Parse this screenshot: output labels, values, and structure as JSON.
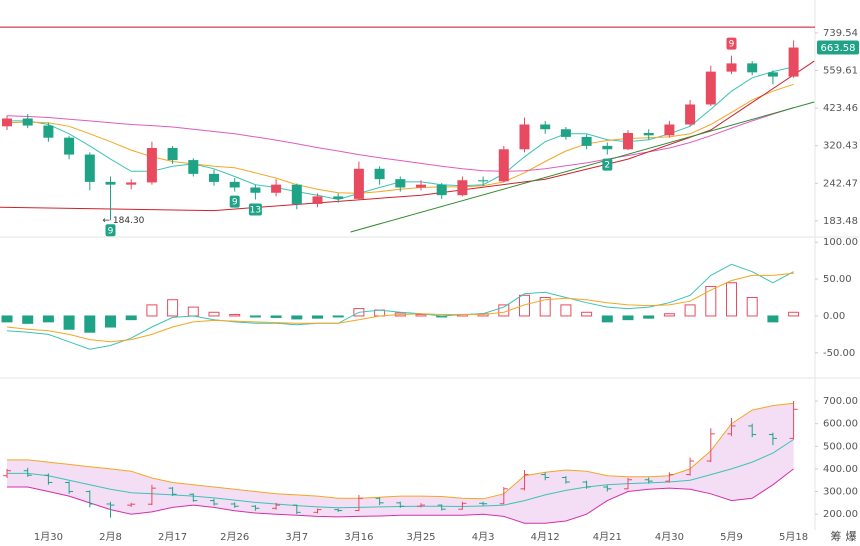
{
  "chart_data": [
    {
      "type": "candlestick",
      "log_scale": true,
      "ylim": [
        164,
        944
      ],
      "yticks": [
        183.48,
        242.47,
        320.43,
        423.46,
        559.61,
        739.54
      ],
      "up_color": "#e84a5f",
      "down_color": "#1fa386",
      "candles": [
        [
          370,
          400,
          360,
          392
        ],
        [
          392,
          405,
          365,
          372
        ],
        [
          372,
          380,
          330,
          340
        ],
        [
          340,
          345,
          290,
          300
        ],
        [
          300,
          305,
          230,
          245
        ],
        [
          245,
          255,
          184.3,
          240
        ],
        [
          240,
          250,
          232,
          244
        ],
        [
          244,
          330,
          240,
          315
        ],
        [
          315,
          320,
          280,
          288
        ],
        [
          288,
          292,
          255,
          260
        ],
        [
          260,
          268,
          238,
          245
        ],
        [
          245,
          252,
          228,
          235
        ],
        [
          235,
          240,
          215,
          226
        ],
        [
          226,
          250,
          220,
          240
        ],
        [
          240,
          242,
          200,
          208
        ],
        [
          208,
          225,
          203,
          220
        ],
        [
          220,
          225,
          210,
          216
        ],
        [
          216,
          285,
          214,
          270
        ],
        [
          270,
          275,
          240,
          250
        ],
        [
          250,
          255,
          228,
          235
        ],
        [
          235,
          248,
          230,
          240
        ],
        [
          240,
          243,
          216,
          222
        ],
        [
          222,
          255,
          220,
          248
        ],
        [
          248,
          255,
          238,
          246
        ],
        [
          246,
          320,
          244,
          312
        ],
        [
          312,
          395,
          305,
          375
        ],
        [
          375,
          385,
          350,
          362
        ],
        [
          362,
          368,
          335,
          342
        ],
        [
          342,
          348,
          312,
          320
        ],
        [
          320,
          328,
          300,
          312
        ],
        [
          312,
          360,
          310,
          352
        ],
        [
          352,
          362,
          335,
          346
        ],
        [
          346,
          385,
          340,
          375
        ],
        [
          375,
          450,
          370,
          435
        ],
        [
          435,
          580,
          430,
          555
        ],
        [
          555,
          625,
          545,
          590
        ],
        [
          590,
          600,
          540,
          552
        ],
        [
          552,
          560,
          505,
          535
        ],
        [
          535,
          700,
          530,
          663.58
        ]
      ],
      "series": [
        {
          "color": "#3cc3b5",
          "values": [
            385,
            385,
            375,
            350,
            320,
            290,
            265,
            265,
            275,
            280,
            270,
            255,
            240,
            235,
            228,
            222,
            215,
            225,
            235,
            245,
            245,
            240,
            238,
            240,
            260,
            295,
            330,
            350,
            350,
            335,
            330,
            335,
            350,
            370,
            420,
            480,
            530,
            555,
            575
          ]
        },
        {
          "color": "#f5a623",
          "values": [
            380,
            382,
            380,
            370,
            350,
            330,
            310,
            295,
            285,
            280,
            275,
            272,
            262,
            252,
            240,
            232,
            226,
            225,
            228,
            232,
            235,
            236,
            236,
            238,
            245,
            262,
            285,
            308,
            325,
            333,
            338,
            340,
            342,
            350,
            375,
            410,
            450,
            480,
            505
          ]
        },
        {
          "color": "#e05cc0",
          "values": [
            400,
            398,
            395,
            390,
            385,
            380,
            375,
            372,
            368,
            362,
            356,
            350,
            342,
            334,
            325,
            316,
            308,
            300,
            293,
            287,
            281,
            275,
            270,
            266,
            265,
            266,
            270,
            276,
            282,
            290,
            298,
            306,
            315,
            328,
            345,
            365,
            385,
            405,
            425
          ]
        }
      ],
      "trendlines": [
        {
          "color": "#d0202f",
          "x": [
            -0.5,
            10,
            20,
            26,
            30,
            34,
            39
          ],
          "values": [
            203,
            198,
            222,
            250,
            290,
            360,
            600
          ]
        },
        {
          "color": "#2e8b2e",
          "x": [
            16.6,
            39
          ],
          "values": [
            169,
            443
          ]
        }
      ],
      "hline": {
        "value": 772,
        "color": "#c8102e"
      },
      "last_price": 663.58,
      "last_price_color": "#1fa386",
      "low_label": {
        "index": 5,
        "text": "← 184.30"
      },
      "markers": [
        {
          "index": 5,
          "text": "9",
          "color": "#1fa386",
          "position": "below"
        },
        {
          "index": 11,
          "text": "9",
          "color": "#1fa386",
          "position": "below"
        },
        {
          "index": 12,
          "text": "13",
          "color": "#1fa386",
          "position": "below"
        },
        {
          "index": 29,
          "text": "2",
          "color": "#1fa386",
          "position": "below"
        },
        {
          "index": 35,
          "text": "9",
          "color": "#e84a5f",
          "position": "above"
        }
      ]
    },
    {
      "type": "macd",
      "ylim": [
        -80,
        107
      ],
      "yticks": [
        {
          "value": 100,
          "label": "100.00"
        },
        {
          "value": 50,
          "label": "50.00"
        },
        {
          "value": 0,
          "label": "0.00"
        },
        {
          "value": -50,
          "label": "-50.00"
        }
      ],
      "pos_color": "#e84a5f",
      "neg_color": "#1fa386",
      "values": [
        -8,
        -10,
        -8,
        -18,
        -22,
        -15,
        -5,
        15,
        22,
        12,
        5,
        2,
        -1,
        -2,
        -4,
        -3,
        -1,
        10,
        8,
        4,
        2,
        -1,
        2,
        3,
        15,
        28,
        25,
        15,
        5,
        -8,
        -5,
        -3,
        3,
        15,
        40,
        45,
        25,
        -8,
        5
      ],
      "series": [
        {
          "color": "#3cc3b5",
          "values": [
            -20,
            -22,
            -25,
            -35,
            -45,
            -40,
            -30,
            -15,
            -2,
            0,
            -5,
            -8,
            -10,
            -10,
            -12,
            -10,
            -10,
            5,
            8,
            5,
            3,
            0,
            2,
            3,
            12,
            30,
            32,
            25,
            18,
            12,
            10,
            12,
            18,
            28,
            55,
            70,
            60,
            45,
            60
          ]
        },
        {
          "color": "#f5a623",
          "values": [
            -15,
            -18,
            -20,
            -25,
            -32,
            -35,
            -32,
            -25,
            -15,
            -8,
            -6,
            -7,
            -8,
            -9,
            -10,
            -10,
            -10,
            -5,
            0,
            2,
            3,
            2,
            2,
            2,
            5,
            15,
            22,
            24,
            22,
            18,
            15,
            14,
            15,
            20,
            35,
            48,
            55,
            55,
            58
          ]
        }
      ]
    },
    {
      "type": "bollinger",
      "ylim": [
        130,
        793
      ],
      "yticks": [
        {
          "value": 700,
          "label": "700.00"
        },
        {
          "value": 600,
          "label": "600.00"
        },
        {
          "value": 500,
          "label": "500.00"
        },
        {
          "value": 400,
          "label": "400.00"
        },
        {
          "value": 300,
          "label": "300.00"
        },
        {
          "value": 200,
          "label": "200.00"
        }
      ],
      "band_fill": "#f1d6f3",
      "categories": [
        null,
        null,
        "1月30",
        null,
        null,
        "2月8",
        null,
        null,
        "2月17",
        null,
        null,
        "2月26",
        null,
        null,
        "3月7",
        null,
        null,
        "3月16",
        null,
        null,
        "3月25",
        null,
        null,
        "4月3",
        null,
        null,
        "4月12",
        null,
        null,
        "4月21",
        null,
        null,
        "4月30",
        null,
        null,
        "5月9",
        null,
        null,
        "5月18"
      ],
      "series": [
        {
          "color": "#f5a623",
          "values": [
            440,
            440,
            430,
            420,
            410,
            400,
            390,
            360,
            340,
            330,
            320,
            310,
            300,
            290,
            285,
            280,
            270,
            270,
            275,
            280,
            280,
            278,
            270,
            268,
            290,
            370,
            385,
            395,
            390,
            370,
            365,
            365,
            370,
            400,
            480,
            600,
            660,
            680,
            690
          ]
        },
        {
          "color": "#3cc3b5",
          "values": [
            380,
            380,
            370,
            350,
            330,
            310,
            295,
            290,
            285,
            280,
            272,
            262,
            252,
            245,
            238,
            232,
            228,
            230,
            232,
            234,
            235,
            235,
            234,
            236,
            240,
            260,
            285,
            305,
            320,
            330,
            335,
            338,
            342,
            350,
            375,
            400,
            430,
            470,
            530
          ]
        },
        {
          "color": "#d62fa8",
          "values": [
            320,
            320,
            300,
            280,
            250,
            220,
            200,
            210,
            230,
            240,
            230,
            215,
            205,
            200,
            195,
            190,
            188,
            190,
            192,
            195,
            195,
            195,
            195,
            200,
            190,
            160,
            160,
            170,
            200,
            260,
            300,
            310,
            315,
            310,
            290,
            260,
            270,
            330,
            400
          ]
        }
      ]
    }
  ],
  "side_buttons": [
    "筹",
    "爆"
  ]
}
